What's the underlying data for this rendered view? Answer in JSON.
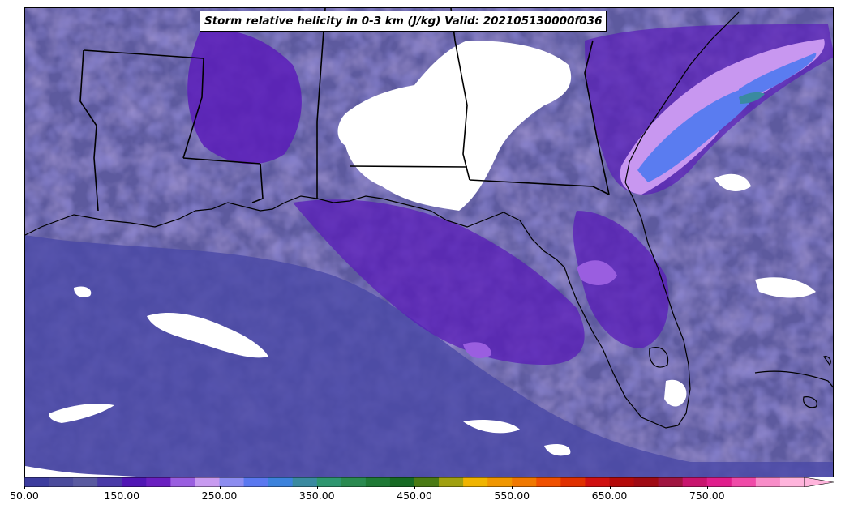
{
  "title": "Storm relative helicity in 0-3 km (J/kg) Valid: 202105130000f036",
  "colorbar": {
    "min": 50,
    "max": 850,
    "step": 25,
    "extend": "max",
    "tick_labels": [
      "50.00",
      "150.00",
      "250.00",
      "350.00",
      "450.00",
      "550.00",
      "650.00",
      "750.00"
    ],
    "colors": [
      "#3c3c9e",
      "#4b4b9c",
      "#5a5aa0",
      "#4a3aa8",
      "#5016b4",
      "#6a1fc0",
      "#9a5ee0",
      "#c89af0",
      "#8c8cf0",
      "#5a78f0",
      "#3c82dc",
      "#3a8aa0",
      "#2e9670",
      "#2a8a50",
      "#1f7a36",
      "#176a24",
      "#4a7a14",
      "#a0a010",
      "#f0b400",
      "#f09600",
      "#f07800",
      "#f05000",
      "#e03000",
      "#d01010",
      "#b40a0a",
      "#a00a14",
      "#a01440",
      "#c8146e",
      "#e01e8c",
      "#f04aa8",
      "#f88cc8",
      "#ffb4dc"
    ]
  },
  "map": {
    "field": "Storm relative helicity 0-3 km",
    "background_fill": "#5a5a9c"
  }
}
